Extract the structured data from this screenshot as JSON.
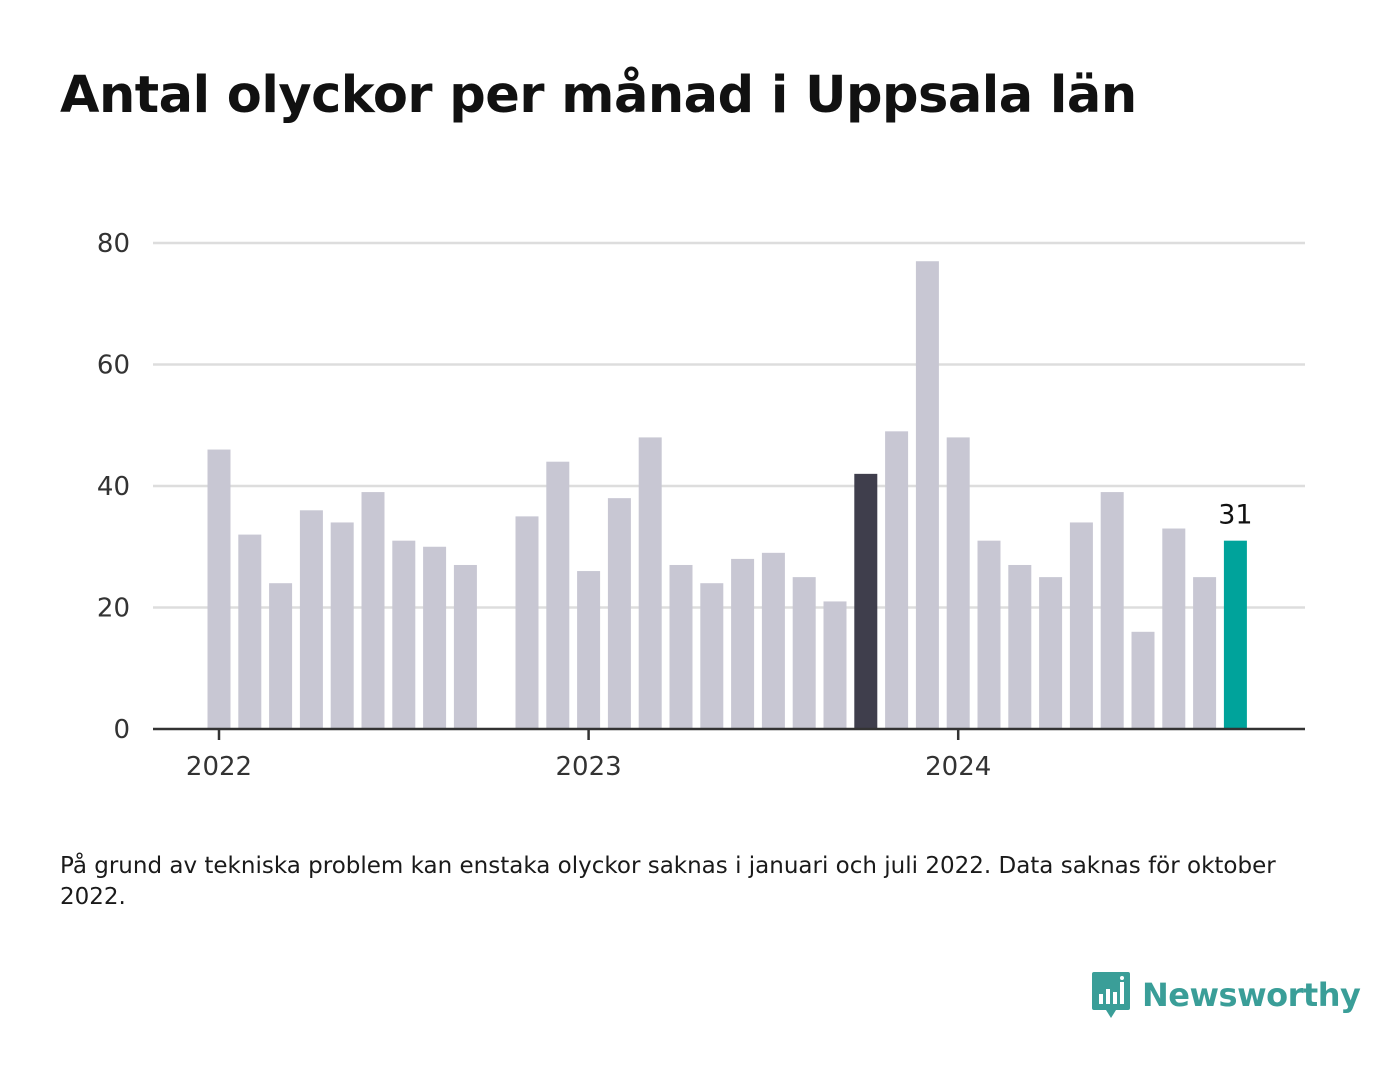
{
  "title": "Antal olyckor per månad i Uppsala län",
  "note": "På grund av tekniska problem kan enstaka olyckor saknas i januari och juli 2022. Data saknas för oktober 2022.",
  "brand": {
    "name": "Newsworthy",
    "color": "#3a9e98"
  },
  "colors": {
    "bar": "#c8c7d3",
    "highlight_dark": "#3f3e4c",
    "highlight_latest": "#00a39b",
    "grid": "#dddddd",
    "axis": "#333333"
  },
  "chart_data": {
    "type": "bar",
    "title": "Antal olyckor per månad i Uppsala län",
    "xlabel": "",
    "ylabel": "",
    "ylim": [
      0,
      80
    ],
    "yticks": [
      0,
      20,
      40,
      60,
      80
    ],
    "xticks": [
      "2022",
      "2023",
      "2024"
    ],
    "grid": true,
    "categories": [
      "2022-01",
      "2022-02",
      "2022-03",
      "2022-04",
      "2022-05",
      "2022-06",
      "2022-07",
      "2022-08",
      "2022-09",
      "2022-10",
      "2022-11",
      "2022-12",
      "2023-01",
      "2023-02",
      "2023-03",
      "2023-04",
      "2023-05",
      "2023-06",
      "2023-07",
      "2023-08",
      "2023-09",
      "2023-10",
      "2023-11",
      "2023-12",
      "2024-01",
      "2024-02",
      "2024-03",
      "2024-04",
      "2024-05",
      "2024-06",
      "2024-07",
      "2024-08",
      "2024-09",
      "2024-10",
      "2024-11"
    ],
    "values": [
      46,
      32,
      24,
      36,
      34,
      39,
      31,
      30,
      27,
      null,
      35,
      44,
      26,
      38,
      48,
      27,
      24,
      28,
      29,
      25,
      21,
      42,
      49,
      77,
      48,
      31,
      27,
      25,
      34,
      39,
      16,
      33,
      25,
      31,
      null
    ],
    "highlight_dark_index": 21,
    "highlight_latest_index": 33,
    "data_labels": [
      {
        "index": 33,
        "text": "31"
      }
    ]
  }
}
